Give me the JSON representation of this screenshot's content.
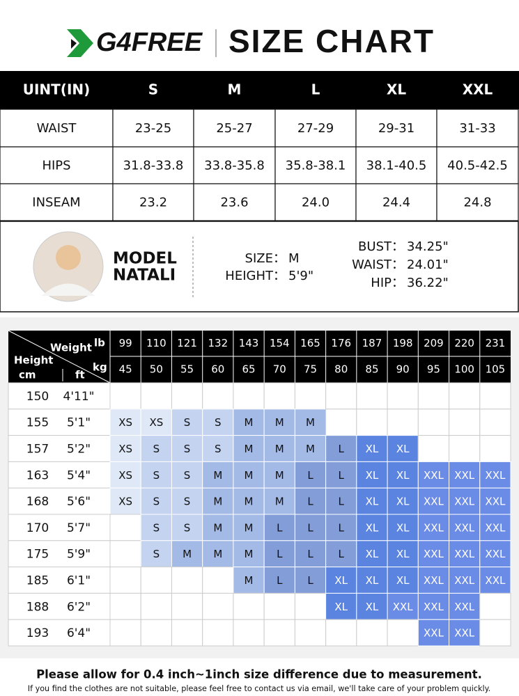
{
  "header": {
    "logo": "G4FREE",
    "title": "SIZE CHART"
  },
  "size_table": {
    "header": [
      "UINT(IN)",
      "S",
      "M",
      "L",
      "XL",
      "XXL"
    ],
    "rows": [
      [
        "WAIST",
        "23-25",
        "25-27",
        "27-29",
        "29-31",
        "31-33"
      ],
      [
        "HIPS",
        "31.8-33.8",
        "33.8-35.8",
        "35.8-38.1",
        "38.1-40.5",
        "40.5-42.5"
      ],
      [
        "INSEAM",
        "23.2",
        "23.6",
        "24.0",
        "24.4",
        "24.8"
      ]
    ]
  },
  "model": {
    "line1": "MODEL",
    "line2": "NATALI",
    "size_label": "SIZE：",
    "size": "M",
    "height_label": "HEIGHT：",
    "height": "5'9\"",
    "bust_label": "BUST：",
    "bust": "34.25\"",
    "waist_label": "WAIST：",
    "waist": "24.01\"",
    "hip_label": "HIP：",
    "hip": "36.22\""
  },
  "grid": {
    "corner": {
      "weight": "Weight",
      "lb": "lb",
      "kg": "kg",
      "height": "Height",
      "cm": "cm",
      "ft": "ft"
    },
    "lb": [
      99,
      110,
      121,
      132,
      143,
      154,
      165,
      176,
      187,
      198,
      209,
      220,
      231
    ],
    "kg": [
      45,
      50,
      55,
      60,
      65,
      70,
      75,
      80,
      85,
      90,
      95,
      100,
      105
    ],
    "size_colors": {
      "XS": "#dfe8f7",
      "S": "#c3d3f0",
      "M": "#a3b9e6",
      "L": "#829dd8",
      "XL": "#5a84e0",
      "XXL": "#6b8ce6"
    },
    "rows": [
      {
        "cm": 150,
        "ft": "4'11\"",
        "sizes": [
          null,
          null,
          null,
          null,
          null,
          null,
          null,
          null,
          null,
          null,
          null,
          null,
          null
        ]
      },
      {
        "cm": 155,
        "ft": "5'1\"",
        "sizes": [
          "XS",
          "XS",
          "S",
          "S",
          "M",
          "M",
          "M",
          null,
          null,
          null,
          null,
          null,
          null
        ]
      },
      {
        "cm": 157,
        "ft": "5'2\"",
        "sizes": [
          "XS",
          "S",
          "S",
          "S",
          "M",
          "M",
          "M",
          "L",
          "XL",
          "XL",
          null,
          null,
          null
        ]
      },
      {
        "cm": 163,
        "ft": "5'4\"",
        "sizes": [
          "XS",
          "S",
          "S",
          "M",
          "M",
          "M",
          "L",
          "L",
          "XL",
          "XL",
          "XXL",
          "XXL",
          "XXL"
        ]
      },
      {
        "cm": 168,
        "ft": "5'6\"",
        "sizes": [
          "XS",
          "S",
          "S",
          "M",
          "M",
          "M",
          "L",
          "L",
          "XL",
          "XL",
          "XXL",
          "XXL",
          "XXL"
        ]
      },
      {
        "cm": 170,
        "ft": "5'7\"",
        "sizes": [
          null,
          "S",
          "S",
          "M",
          "M",
          "L",
          "L",
          "L",
          "XL",
          "XL",
          "XXL",
          "XXL",
          "XXL"
        ]
      },
      {
        "cm": 175,
        "ft": "5'9\"",
        "sizes": [
          null,
          "S",
          "M",
          "M",
          "M",
          "L",
          "L",
          "L",
          "XL",
          "XL",
          "XXL",
          "XXL",
          "XXL"
        ]
      },
      {
        "cm": 185,
        "ft": "6'1\"",
        "sizes": [
          null,
          null,
          null,
          null,
          "M",
          "L",
          "L",
          "XL",
          "XL",
          "XL",
          "XXL",
          "XXL",
          "XXL"
        ]
      },
      {
        "cm": 188,
        "ft": "6'2\"",
        "sizes": [
          null,
          null,
          null,
          null,
          null,
          null,
          null,
          "XL",
          "XL",
          "XXL",
          "XXL",
          "XXL",
          null
        ]
      },
      {
        "cm": 193,
        "ft": "6'4\"",
        "sizes": [
          null,
          null,
          null,
          null,
          null,
          null,
          null,
          null,
          null,
          null,
          "XXL",
          "XXL",
          null
        ]
      }
    ]
  },
  "footer": {
    "note": "Please allow for 0.4 inch~1inch size difference due to measurement.",
    "contact": "If you find the clothes  are not suitable, please feel free to contact us via email, we'll take care of your problem quickly."
  }
}
